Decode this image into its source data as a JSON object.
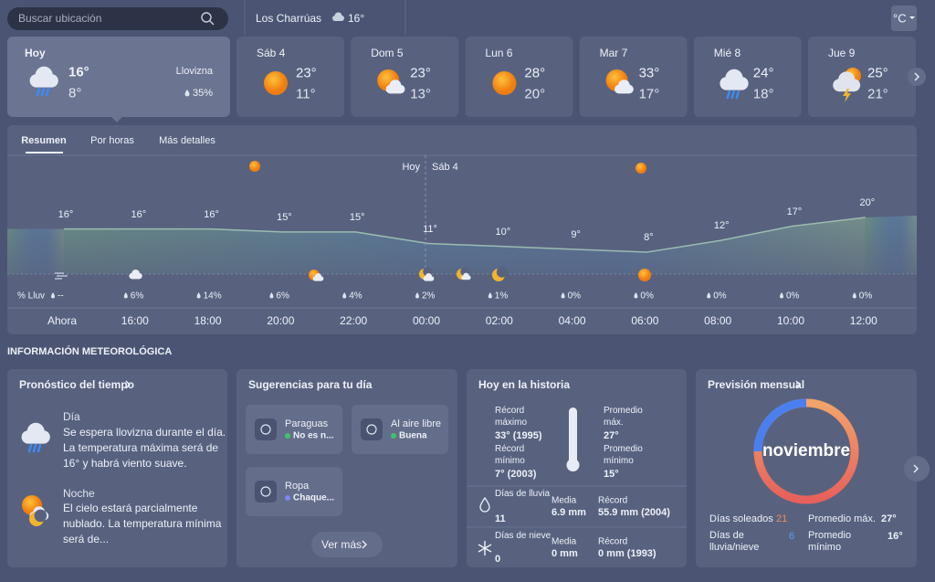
{
  "search_placeholder": "Buscar ubicación",
  "location": {
    "name": "Los Charrúas",
    "temp": "16°"
  },
  "unit": "°C",
  "days": [
    {
      "day": "Hoy",
      "hi": "16°",
      "lo": "8°",
      "condition": "Llovizna",
      "rain": "35%"
    },
    {
      "day": "Sáb 4",
      "hi": "23°",
      "lo": "11°"
    },
    {
      "day": "Dom 5",
      "hi": "23°",
      "lo": "13°"
    },
    {
      "day": "Lun 6",
      "hi": "28°",
      "lo": "20°"
    },
    {
      "day": "Mar 7",
      "hi": "33°",
      "lo": "17°"
    },
    {
      "day": "Mié 8",
      "hi": "24°",
      "lo": "18°"
    },
    {
      "day": "Jue 9",
      "hi": "25°",
      "lo": "21°"
    }
  ],
  "tabs": [
    "Resumen",
    "Por horas",
    "Más detalles"
  ],
  "chart_data": {
    "type": "area",
    "categories": [
      "Ahora",
      "16:00",
      "18:00",
      "20:00",
      "22:00",
      "00:00",
      "02:00",
      "04:00",
      "06:00",
      "08:00",
      "10:00",
      "12:00"
    ],
    "series": [
      {
        "values": [
          16,
          16,
          16,
          15,
          15,
          11,
          10,
          9,
          8,
          12,
          17,
          20
        ],
        "value_labels": [
          "16°",
          "16°",
          "16°",
          "15°",
          "15°",
          "11°",
          "10°",
          "9°",
          "8°",
          "12°",
          "17°",
          "20°"
        ]
      }
    ],
    "day_markers": [
      "Hoy",
      "Sáb 4"
    ],
    "rain_label": "% Lluv",
    "rain": [
      "--",
      "6%",
      "14%",
      "6%",
      "4%",
      "2%",
      "1%",
      "0%",
      "0%",
      "0%",
      "0%",
      "0%"
    ]
  },
  "section_title": "INFORMACIÓN METEOROLÓGICA",
  "forecast": {
    "title": "Pronóstico del tiempo",
    "day_label": "Día",
    "day_text": "Se espera llovizna durante el día. La temperatura máxima será de 16° y habrá viento suave.",
    "night_label": "Noche",
    "night_text": "El cielo estará parcialmente nublado. La temperatura mínima será de..."
  },
  "suggestions": {
    "title": "Sugerencias para tu día",
    "tiles": [
      {
        "label": "Paraguas",
        "value": "No es n..."
      },
      {
        "label": "Al aire libre",
        "value": "Buena"
      },
      {
        "label": "Ropa",
        "value": "Chaque..."
      }
    ],
    "button": "Ver más"
  },
  "history": {
    "title": "Hoy en la historia",
    "record_max_label": "Récord máximo",
    "record_max": "33° (1995)",
    "record_min_label": "Récord mínimo",
    "record_min": "7° (2003)",
    "avg_max_label": "Promedio máx.",
    "avg_max": "27°",
    "avg_min_label": "Promedio mínimo",
    "avg_min": "15°",
    "rain_days_label": "Días de lluvia",
    "rain_days": "11",
    "rain_mean_label": "Media",
    "rain_mean": "6.9 mm",
    "rain_record_label": "Récord",
    "rain_record": "55.9 mm (2004)",
    "snow_days_label": "Días de nieve",
    "snow_days": "0",
    "snow_mean_label": "Media",
    "snow_mean": "0 mm",
    "snow_record_label": "Récord",
    "snow_record": "0 mm (1993)"
  },
  "monthly": {
    "title": "Previsión mensual",
    "month": "noviembre",
    "sunny_label": "Días soleados",
    "sunny": "21",
    "avg_max_label": "Promedio máx.",
    "avg_max": "27°",
    "rain_label": "Días de lluvia/nieve",
    "rain": "6",
    "avg_min_label": "Promedio mínimo",
    "avg_min": "16°"
  }
}
